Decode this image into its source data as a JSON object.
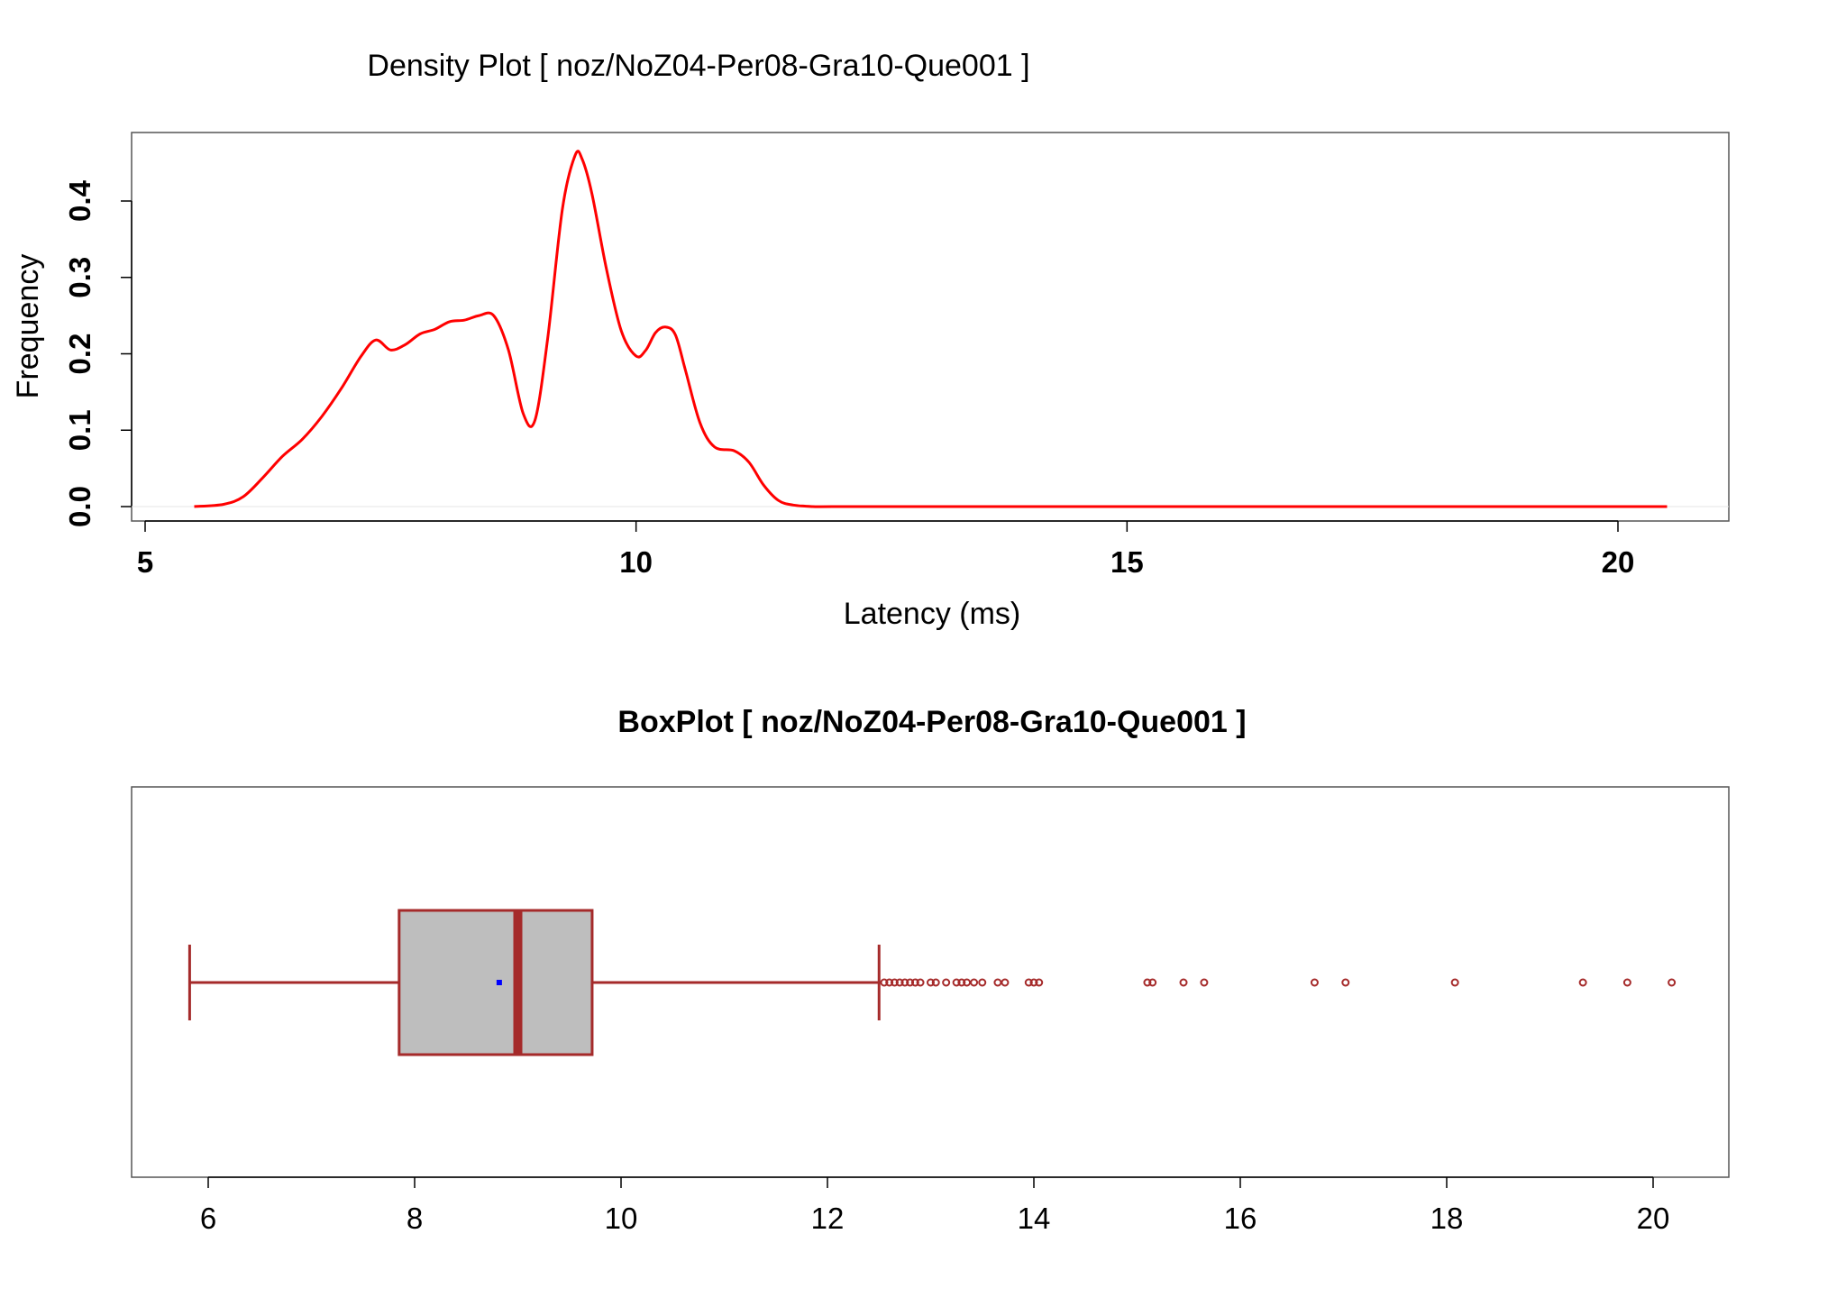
{
  "chart_data": [
    {
      "type": "line",
      "title": "Density Plot [ noz/NoZ04-Per08-Gra10-Que001 ]",
      "xlabel": "Latency (ms)",
      "ylabel": "Frequency",
      "xlim": [
        5,
        21
      ],
      "ylim": [
        0,
        0.47
      ],
      "x_ticks": [
        "5",
        "10",
        "15",
        "20"
      ],
      "y_ticks": [
        "0.0",
        "0.1",
        "0.2",
        "0.3",
        "0.4"
      ],
      "colors": {
        "line": "#ff0000"
      },
      "series": [
        {
          "x": [
            5.5,
            5.8,
            6.0,
            6.2,
            6.4,
            6.6,
            6.8,
            7.0,
            7.2,
            7.35,
            7.5,
            7.65,
            7.8,
            7.95,
            8.1,
            8.25,
            8.4,
            8.55,
            8.7,
            8.85,
            8.97,
            9.1,
            9.25,
            9.38,
            9.45,
            9.55,
            9.7,
            9.85,
            10.0,
            10.1,
            10.2,
            10.3,
            10.4,
            10.5,
            10.65,
            10.8,
            11.0,
            11.15,
            11.3,
            11.45,
            11.6,
            11.8,
            12.0,
            13.0,
            15.0,
            18.0,
            20.5
          ],
          "y": [
            0.0,
            0.003,
            0.013,
            0.038,
            0.066,
            0.088,
            0.118,
            0.155,
            0.197,
            0.218,
            0.205,
            0.212,
            0.226,
            0.232,
            0.242,
            0.244,
            0.25,
            0.25,
            0.205,
            0.122,
            0.113,
            0.22,
            0.39,
            0.46,
            0.455,
            0.41,
            0.31,
            0.23,
            0.197,
            0.205,
            0.228,
            0.235,
            0.225,
            0.18,
            0.11,
            0.078,
            0.073,
            0.058,
            0.028,
            0.008,
            0.002,
            0.0,
            0.0,
            0.0,
            0.0,
            0.0,
            0.0
          ]
        }
      ]
    },
    {
      "type": "boxplot",
      "title": "BoxPlot [ noz/NoZ04-Per08-Gra10-Que001 ]",
      "xlim": [
        5.2,
        20.7
      ],
      "x_ticks": [
        "6",
        "8",
        "10",
        "12",
        "14",
        "16",
        "18",
        "20"
      ],
      "colors": {
        "box_fill": "#bebebe",
        "stroke": "#a52a2a",
        "mean": "#0000ff"
      },
      "box": {
        "min": 5.82,
        "q1": 7.85,
        "median": 9.0,
        "q3": 9.72,
        "max": 12.5,
        "mean": 8.82
      },
      "outliers": [
        12.55,
        12.6,
        12.65,
        12.7,
        12.75,
        12.8,
        12.85,
        12.9,
        13.0,
        13.05,
        13.15,
        13.25,
        13.3,
        13.35,
        13.42,
        13.5,
        13.65,
        13.72,
        13.95,
        14.0,
        14.05,
        15.1,
        15.15,
        15.45,
        15.65,
        16.72,
        17.02,
        18.08,
        19.32,
        19.75,
        20.18
      ]
    }
  ]
}
